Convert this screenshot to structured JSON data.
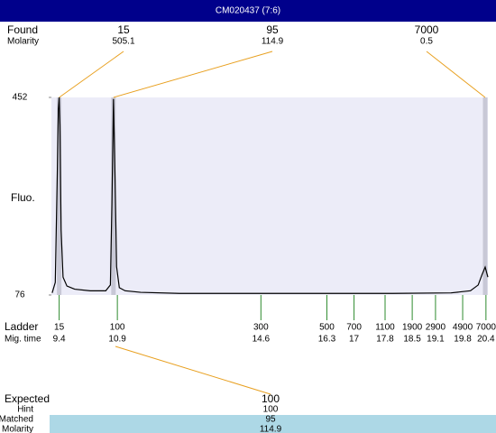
{
  "title": "CM020437 (7:6)",
  "chart_data": {
    "type": "line",
    "y_label": "Fluo.",
    "xlim": [
      9.2,
      20.45
    ],
    "ylim": [
      76,
      452
    ],
    "yticks": [
      76,
      452
    ],
    "x": [
      9.22,
      9.3,
      9.35,
      9.38,
      9.4,
      9.42,
      9.45,
      9.5,
      9.6,
      9.8,
      10.2,
      10.6,
      10.72,
      10.76,
      10.8,
      10.84,
      10.88,
      10.95,
      11.1,
      11.5,
      12.5,
      15,
      18,
      19.5,
      20.0,
      20.2,
      20.3,
      20.38,
      20.45
    ],
    "series": [
      {
        "color": "#000000",
        "values": [
          80,
          100,
          300,
          430,
          452,
          400,
          200,
          110,
          93,
          87,
          84,
          84,
          95,
          250,
          449,
          300,
          130,
          90,
          84,
          81,
          79,
          79,
          79,
          80,
          84,
          95,
          115,
          129,
          110
        ]
      }
    ]
  },
  "found": {
    "label": "Found",
    "sublabel": "Molarity",
    "peaks": [
      {
        "size": 15,
        "molarity": 505.1,
        "mig_time": 9.4
      },
      {
        "size": 95,
        "molarity": 114.9,
        "mig_time": 10.8
      },
      {
        "size": 7000,
        "molarity": 0.5,
        "mig_time": 20.38
      }
    ]
  },
  "ladder": {
    "label": "Ladder",
    "sublabel": "Mig. time",
    "sizes": [
      15,
      100,
      300,
      500,
      700,
      1100,
      1900,
      2900,
      4900,
      7000
    ],
    "mig_times": [
      9.4,
      10.9,
      14.6,
      16.3,
      17,
      17.8,
      18.5,
      19.1,
      19.8,
      20.4
    ]
  },
  "expected": {
    "label": "Expected",
    "value": 100,
    "rows": [
      {
        "label": "Hint",
        "value": 100
      },
      {
        "label": "Matched",
        "value": 95
      },
      {
        "label": "Molarity",
        "value": 114.9
      }
    ]
  }
}
